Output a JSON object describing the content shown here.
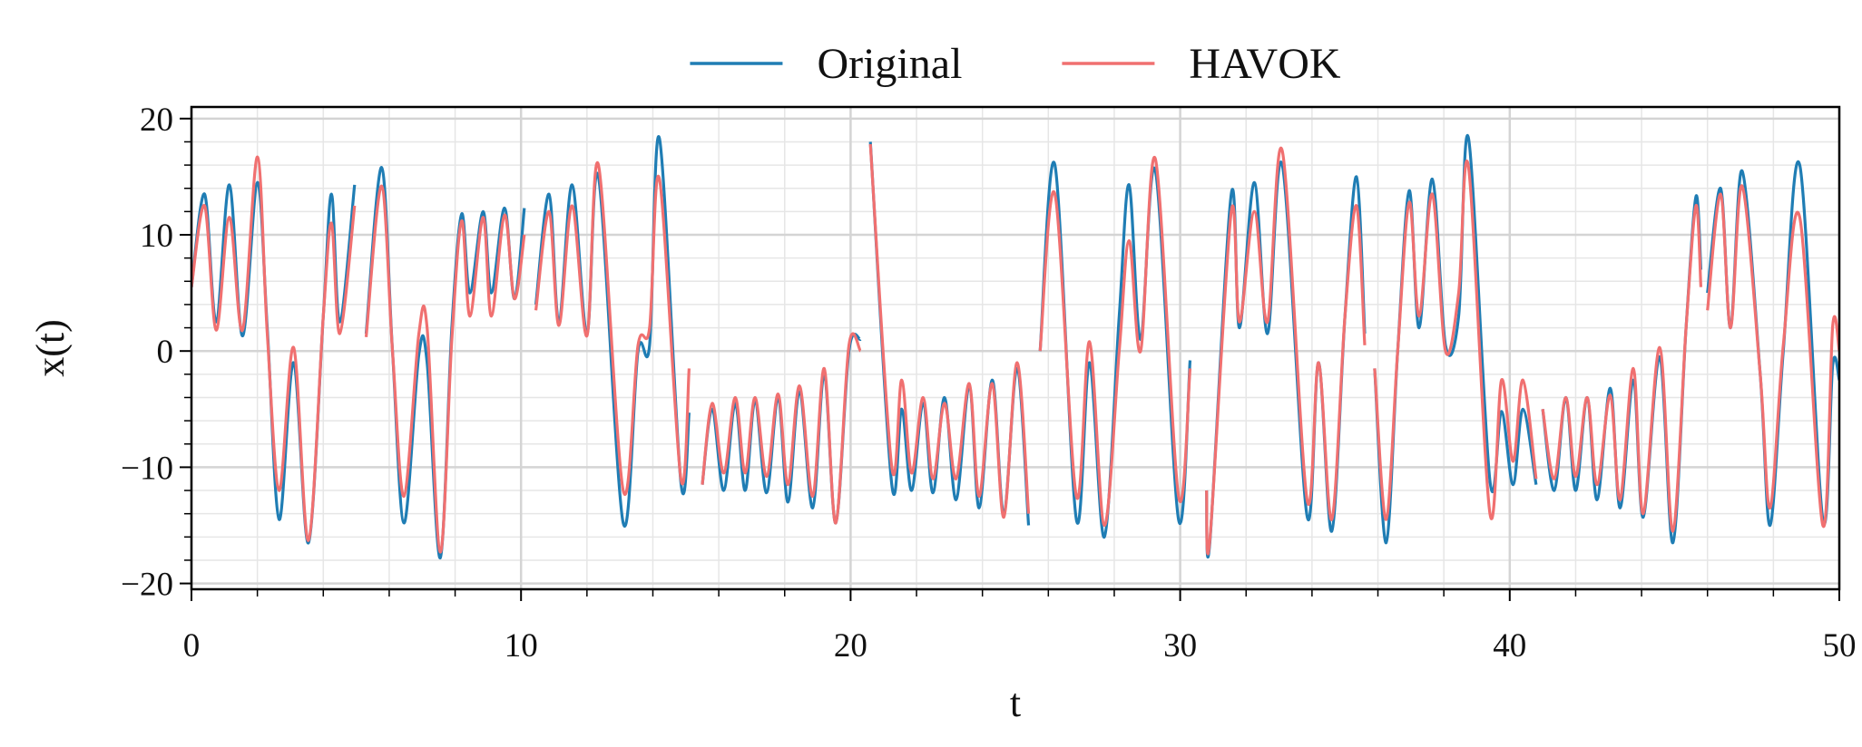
{
  "chart_data": {
    "type": "line",
    "x_label": "t",
    "y_label": "x(t)",
    "legend": "upper center",
    "grid": true,
    "xlim": [
      0,
      50
    ],
    "ylim": [
      -20.5,
      21
    ],
    "xticks": [
      0,
      10,
      20,
      30,
      40,
      50
    ],
    "yticks": [
      {
        "value": -20,
        "label": "−20"
      },
      {
        "value": -10,
        "label": "−10"
      },
      0,
      10,
      20
    ],
    "xminorticks": [
      2,
      4,
      6,
      8,
      12,
      14,
      16,
      18,
      22,
      24,
      26,
      28,
      32,
      34,
      36,
      38,
      42,
      44,
      46,
      48
    ],
    "yminorticks": [
      -18,
      -16,
      -14,
      -12,
      -8,
      -6,
      -4,
      -2,
      2,
      4,
      6,
      8,
      12,
      14,
      16,
      18
    ],
    "x": [
      0,
      0.4,
      0.75,
      1.15,
      1.55,
      2.0,
      2.3,
      2.66,
      3.1,
      3.55,
      4.0,
      4.25,
      4.5,
      4.95,
      5.1,
      5.3,
      5.77,
      6.1,
      6.45,
      6.9,
      7.15,
      7.55,
      7.9,
      8.2,
      8.45,
      8.85,
      9.1,
      9.5,
      9.8,
      10.1,
      10.25,
      10.45,
      10.85,
      11.15,
      11.55,
      12.0,
      12.35,
      13.1,
      13.55,
      13.9,
      14.2,
      14.85,
      15.1,
      15.3,
      15.5,
      15.8,
      16.15,
      16.5,
      16.8,
      17.1,
      17.45,
      17.8,
      18.1,
      18.45,
      18.85,
      19.2,
      19.55,
      19.95,
      20.3,
      20.45,
      20.6,
      21.25,
      21.55,
      21.85,
      22.2,
      22.5,
      22.85,
      23.2,
      23.6,
      23.9,
      24.3,
      24.65,
      25.05,
      25.4,
      25.6,
      25.75,
      26.2,
      26.85,
      27.25,
      27.7,
      28.15,
      28.45,
      28.8,
      29.25,
      29.95,
      30.3,
      30.6,
      30.8,
      30.9,
      31.55,
      31.8,
      32.25,
      32.65,
      33.1,
      33.85,
      34.2,
      34.6,
      35.0,
      35.35,
      35.6,
      35.75,
      35.9,
      36.25,
      36.6,
      36.95,
      37.25,
      37.65,
      38.05,
      38.45,
      38.75,
      39.4,
      39.75,
      40.1,
      40.4,
      40.8,
      40.9,
      41.0,
      41.35,
      41.7,
      42.0,
      42.35,
      42.65,
      43.05,
      43.35,
      43.75,
      44.05,
      44.55,
      44.95,
      45.35,
      45.65,
      45.8,
      45.9,
      46.0,
      46.4,
      46.7,
      47.05,
      47.6,
      47.9,
      48.3,
      48.8,
      49.5,
      49.8,
      50
    ],
    "series": [
      {
        "name": "Original",
        "color": "#1f7db4",
        "values": [
          5.5,
          13.5,
          2.5,
          14.3,
          1.3,
          14.5,
          2,
          -14.5,
          -1,
          -16.5,
          3,
          13.5,
          2.5,
          14.3,
          null,
          1.5,
          15.8,
          0,
          -14.8,
          -0.3,
          -1,
          -17.8,
          2,
          11.8,
          5,
          12,
          5,
          12.3,
          4.5,
          12.3,
          null,
          4,
          13.5,
          2.5,
          14.3,
          1.5,
          15,
          -14.8,
          0,
          0.5,
          18.3,
          -11.3,
          -5.3,
          null,
          -11.5,
          -5,
          -12,
          -4.5,
          -12,
          -4.3,
          -12.2,
          -4,
          -13,
          -3.5,
          -13.5,
          -2,
          -14.8,
          0,
          1,
          null,
          18,
          -11.5,
          -5,
          -12,
          -4.5,
          -12.2,
          -4,
          -12.8,
          -3,
          -13.5,
          -2.5,
          -14,
          -1.5,
          -15,
          null,
          0,
          16,
          -14.5,
          -1,
          -16,
          3,
          14.3,
          1,
          15.5,
          -14.5,
          -0.8,
          null,
          -12,
          -16.5,
          13.5,
          2,
          14.5,
          1.5,
          16,
          -14.2,
          -1,
          -15.5,
          3,
          15,
          1.5,
          null,
          -1.5,
          -16.5,
          0,
          13.8,
          2,
          14.8,
          0.5,
          3,
          18.3,
          -11.2,
          -5.2,
          -11.5,
          -5,
          -11.5,
          null,
          -5,
          -12,
          -4,
          -12,
          -4,
          -12.8,
          -3.2,
          -13.5,
          -2.5,
          -14.3,
          -0.5,
          -16.5,
          2,
          13.3,
          7,
          null,
          5,
          14,
          2,
          15.5,
          -2,
          -15,
          0,
          16,
          -14.5,
          -1.2,
          -2.5
        ]
      },
      {
        "name": "HAVOK",
        "color": "#f07070",
        "values": [
          5.5,
          12.5,
          1.8,
          11.5,
          1.8,
          16.7,
          1.5,
          -12,
          0.3,
          -16.3,
          3,
          11,
          1.5,
          12.5,
          null,
          1.2,
          14.2,
          0,
          -12.5,
          1.5,
          2,
          -17.3,
          1,
          11.2,
          3,
          11.5,
          3,
          11.7,
          4.5,
          10,
          null,
          3.5,
          12,
          2.2,
          12.5,
          1.3,
          16,
          -12,
          0.5,
          2,
          14.8,
          -11,
          -1.5,
          null,
          -11.5,
          -4.5,
          -10.5,
          -4,
          -10.5,
          -4,
          -10.8,
          -3.7,
          -11.5,
          -3,
          -12.5,
          -1.5,
          -14.8,
          0.5,
          0,
          null,
          17.8,
          -10,
          -2.5,
          -10.5,
          -4,
          -11,
          -4.5,
          -11,
          -2.8,
          -12.5,
          -2.8,
          -14.3,
          -1,
          -14,
          null,
          0,
          13.5,
          -12.5,
          0.8,
          -15,
          0,
          9.5,
          0,
          16.5,
          -12.5,
          -1.5,
          null,
          -12,
          -16.3,
          12,
          2.5,
          12,
          2.5,
          17.2,
          -12.8,
          -1,
          -14.5,
          3,
          12.5,
          0.5,
          null,
          -1.5,
          -14.5,
          0,
          12.8,
          3,
          13.5,
          0,
          5,
          15.8,
          -14,
          -2.5,
          -9.5,
          -2.5,
          -11,
          null,
          -5,
          -11,
          -4,
          -10.8,
          -4,
          -11.5,
          -3.8,
          -12.8,
          -1.5,
          -14,
          0.3,
          -15.5,
          2,
          12.5,
          5.5,
          null,
          3.5,
          13.5,
          2,
          14.2,
          -2,
          -13.5,
          0.5,
          11.5,
          -15,
          2.2,
          0
        ]
      }
    ]
  }
}
